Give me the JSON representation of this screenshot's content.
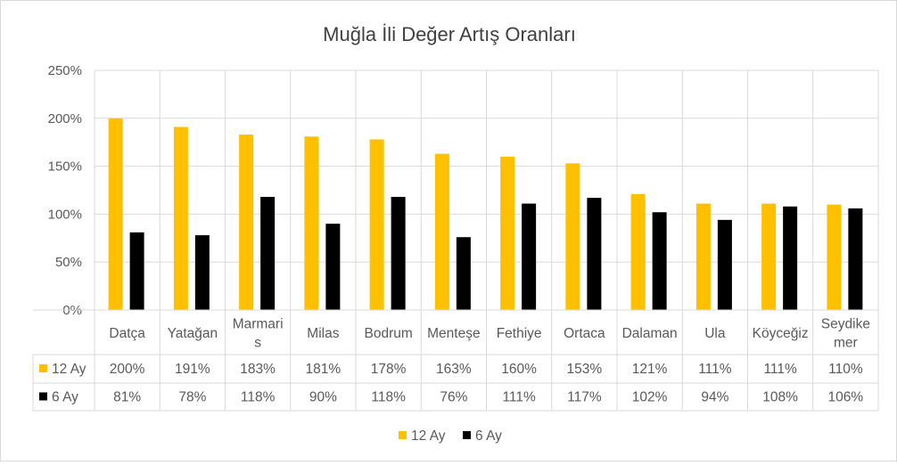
{
  "chart_data": {
    "type": "bar",
    "title": "Muğla İli Değer Artış Oranları",
    "xlabel": "",
    "ylabel": "",
    "ylim": [
      0,
      250
    ],
    "y_ticks": [
      "0%",
      "50%",
      "100%",
      "150%",
      "200%",
      "250%"
    ],
    "y_tick_values": [
      0,
      50,
      100,
      150,
      200,
      250
    ],
    "categories": [
      "Datça",
      "Yatağan",
      "Marmaris",
      "Milas",
      "Bodrum",
      "Menteşe",
      "Fethiye",
      "Ortaca",
      "Dalaman",
      "Ula",
      "Köyceğiz",
      "Seydikemer"
    ],
    "category_label_lines": [
      [
        "Datça"
      ],
      [
        "Yatağan"
      ],
      [
        "Marmari",
        "s"
      ],
      [
        "Milas"
      ],
      [
        "Bodrum"
      ],
      [
        "Menteşe"
      ],
      [
        "Fethiye"
      ],
      [
        "Ortaca"
      ],
      [
        "Dalaman"
      ],
      [
        "Ula"
      ],
      [
        "Köyceğiz"
      ],
      [
        "Seydike",
        "mer"
      ]
    ],
    "series": [
      {
        "name": "12 Ay",
        "color": "#ffc000",
        "values": [
          200,
          191,
          183,
          181,
          178,
          163,
          160,
          153,
          121,
          111,
          111,
          110
        ],
        "labels": [
          "200%",
          "191%",
          "183%",
          "181%",
          "178%",
          "163%",
          "160%",
          "153%",
          "121%",
          "111%",
          "111%",
          "110%"
        ]
      },
      {
        "name": "6 Ay",
        "color": "#000000",
        "values": [
          81,
          78,
          118,
          90,
          118,
          76,
          111,
          117,
          102,
          94,
          108,
          106
        ],
        "labels": [
          "81%",
          "78%",
          "118%",
          "90%",
          "118%",
          "76%",
          "111%",
          "117%",
          "102%",
          "94%",
          "108%",
          "106%"
        ]
      }
    ],
    "grid": true,
    "data_table": true,
    "legend": "bottom"
  }
}
